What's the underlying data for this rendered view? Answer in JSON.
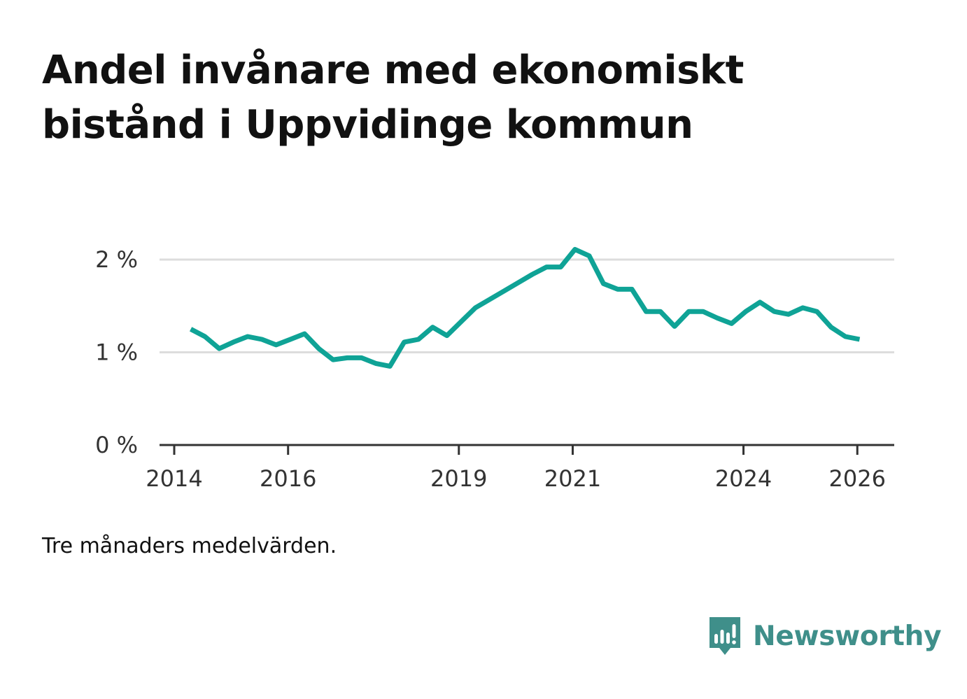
{
  "title": "Andel invånare med ekonomiskt bistånd i Uppvidinge kommun",
  "note": "Tre månaders medelvärden.",
  "brand": {
    "name": "Newsworthy",
    "color": "#3f8f8a"
  },
  "colors": {
    "line": "#0fa396",
    "grid": "#dddddd",
    "axis": "#333333"
  },
  "chart_data": {
    "type": "line",
    "title": "Andel invånare med ekonomiskt bistånd i Uppvidinge kommun",
    "xlabel": "",
    "ylabel": "",
    "xlim": [
      2014.0,
      2026.5
    ],
    "ylim": [
      0,
      2.0
    ],
    "y_ticks": [
      {
        "value": 0,
        "label": "0 %"
      },
      {
        "value": 1,
        "label": "1 %"
      },
      {
        "value": 2,
        "label": "2 %"
      }
    ],
    "x_ticks": [
      {
        "value": 2014,
        "label": "2014"
      },
      {
        "value": 2016,
        "label": "2016"
      },
      {
        "value": 2019,
        "label": "2019"
      },
      {
        "value": 2021,
        "label": "2021"
      },
      {
        "value": 2024,
        "label": "2024"
      },
      {
        "value": 2026,
        "label": "2026"
      }
    ],
    "series": [
      {
        "name": "Andel invånare med ekonomiskt bistånd",
        "x": [
          2014.29,
          2014.54,
          2014.79,
          2015.04,
          2015.29,
          2015.54,
          2015.79,
          2016.04,
          2016.29,
          2016.54,
          2016.79,
          2017.04,
          2017.29,
          2017.54,
          2017.79,
          2018.04,
          2018.29,
          2018.54,
          2018.79,
          2019.04,
          2019.29,
          2019.54,
          2019.79,
          2020.04,
          2020.29,
          2020.54,
          2020.79,
          2021.04,
          2021.29,
          2021.54,
          2021.79,
          2022.04,
          2022.29,
          2022.54,
          2022.79,
          2023.04,
          2023.29,
          2023.54,
          2023.79,
          2024.04,
          2024.29,
          2024.54,
          2024.79,
          2025.04,
          2025.29,
          2025.54,
          2025.79,
          2026.04
        ],
        "values": [
          1.25,
          1.17,
          1.04,
          1.11,
          1.17,
          1.14,
          1.08,
          1.14,
          1.2,
          1.04,
          0.92,
          0.94,
          0.94,
          0.88,
          0.85,
          1.11,
          1.14,
          1.27,
          1.18,
          1.33,
          1.48,
          1.57,
          1.66,
          1.75,
          1.84,
          1.92,
          1.92,
          2.11,
          2.04,
          1.74,
          1.68,
          1.68,
          1.44,
          1.44,
          1.28,
          1.44,
          1.44,
          1.37,
          1.31,
          1.44,
          1.54,
          1.44,
          1.41,
          1.48,
          1.44,
          1.27,
          1.17,
          1.14
        ]
      }
    ],
    "grid": true
  }
}
